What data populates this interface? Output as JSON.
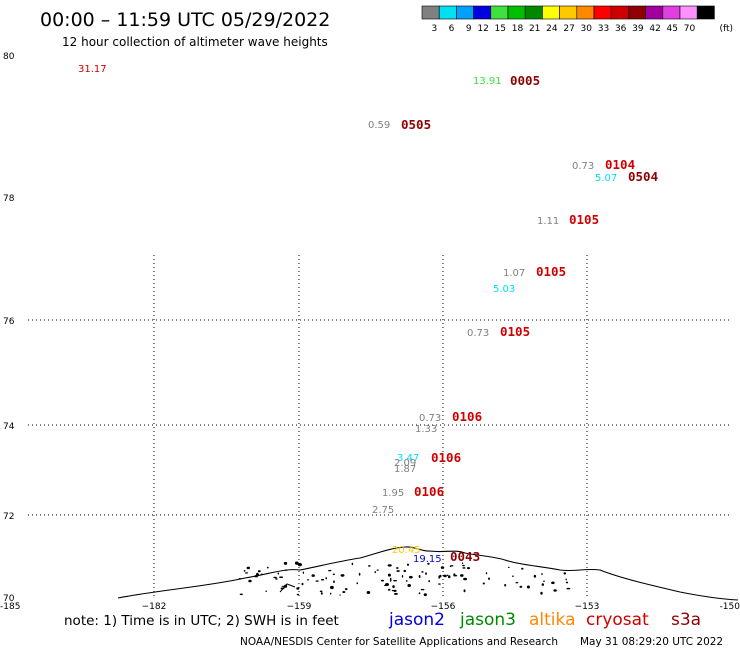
{
  "header": {
    "title": "00:00 – 11:59 UTC 05/29/2022",
    "subtitle": "12 hour collection of altimeter wave heights"
  },
  "legend": {
    "unit_label": "(ft)",
    "bins": [
      {
        "label": "3",
        "color": "#808080"
      },
      {
        "label": "6",
        "color": "#00e0f0"
      },
      {
        "label": "9",
        "color": "#00a0ff"
      },
      {
        "label": "12",
        "color": "#0000e0"
      },
      {
        "label": "15",
        "color": "#40e040"
      },
      {
        "label": "18",
        "color": "#00c000"
      },
      {
        "label": "21",
        "color": "#008800"
      },
      {
        "label": "24",
        "color": "#ffff00"
      },
      {
        "label": "27",
        "color": "#ffc800"
      },
      {
        "label": "30",
        "color": "#ff8800"
      },
      {
        "label": "33",
        "color": "#ff0000"
      },
      {
        "label": "36",
        "color": "#d00000"
      },
      {
        "label": "39",
        "color": "#900000"
      },
      {
        "label": "42",
        "color": "#a000a0"
      },
      {
        "label": "45",
        "color": "#e040e0"
      },
      {
        "label": "70",
        "color": "#ff90ff"
      },
      {
        "label": "",
        "color": "#000000"
      }
    ]
  },
  "axes": {
    "lat_labels": [
      "80",
      "78",
      "76",
      "74",
      "72",
      "70"
    ],
    "lon_labels": [
      "-185",
      "−182",
      "−159",
      "−156",
      "−153",
      "-150"
    ]
  },
  "observations": [
    {
      "swh": "31.17",
      "time": "",
      "color": "#d00000",
      "time_color": ""
    },
    {
      "swh": "13.91",
      "time": "0005",
      "color": "#40e040",
      "time_color": "#900000"
    },
    {
      "swh": "0.59",
      "time": "0505",
      "color": "#808080",
      "time_color": "#900000"
    },
    {
      "swh": "0.73",
      "time": "0104",
      "color": "#808080",
      "time_color": "#d00000"
    },
    {
      "swh": "5.07",
      "time": "0504",
      "color": "#00e0f0",
      "time_color": "#900000"
    },
    {
      "swh": "1.11",
      "time": "0105",
      "color": "#808080",
      "time_color": "#d00000"
    },
    {
      "swh": "1.07",
      "time": "0105",
      "color": "#808080",
      "time_color": "#d00000"
    },
    {
      "swh": "5.03",
      "time": "",
      "color": "#00e0f0",
      "time_color": ""
    },
    {
      "swh": "0.73",
      "time": "0105",
      "color": "#808080",
      "time_color": "#d00000"
    },
    {
      "swh": "0.73",
      "time": "0106",
      "color": "#808080",
      "time_color": "#d00000"
    },
    {
      "swh": "1.33",
      "time": "",
      "color": "#808080",
      "time_color": ""
    },
    {
      "swh": "3.47",
      "time": "0106",
      "color": "#00e0f0",
      "time_color": "#d00000"
    },
    {
      "swh": "2.09",
      "time": "",
      "color": "#808080",
      "time_color": ""
    },
    {
      "swh": "1.87",
      "time": "",
      "color": "#808080",
      "time_color": ""
    },
    {
      "swh": "1.95",
      "time": "0106",
      "color": "#808080",
      "time_color": "#d00000"
    },
    {
      "swh": "2.75",
      "time": "",
      "color": "#808080",
      "time_color": ""
    },
    {
      "swh": "20.45",
      "time": "",
      "color": "#ffc800",
      "time_color": ""
    },
    {
      "swh": "19.15",
      "time": "0043",
      "color": "#0000e0",
      "time_color": "#900000"
    }
  ],
  "footer": {
    "note": "note: 1) Time is in UTC; 2) SWH is in feet",
    "satellites": [
      {
        "name": "jason2",
        "color": "#0000e0"
      },
      {
        "name": "jason3",
        "color": "#008800"
      },
      {
        "name": "altika",
        "color": "#ff8800"
      },
      {
        "name": "cryosat",
        "color": "#d00000"
      },
      {
        "name": "s3a",
        "color": "#900000"
      }
    ],
    "credit": "NOAA/NESDIS Center for Satellite Applications and Research",
    "timestamp": "May 31 08:29:20 UTC 2022"
  }
}
